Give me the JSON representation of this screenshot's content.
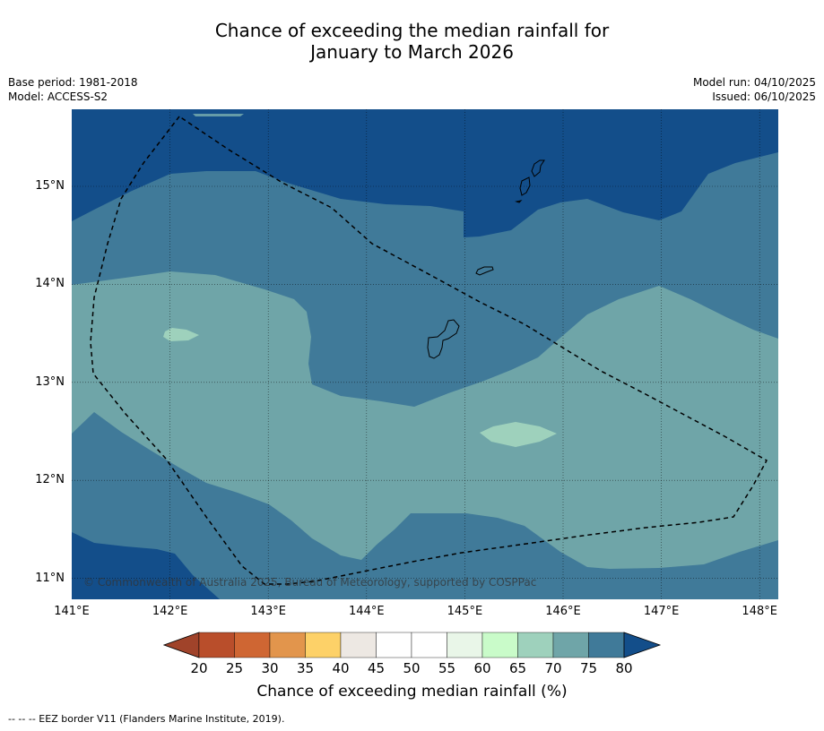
{
  "title": {
    "line1": "Chance of exceeding the median rainfall for",
    "line2": "January to March 2026"
  },
  "meta": {
    "base_period": "Base period: 1981-2018",
    "model": "Model: ACCESS-S2",
    "model_run": "Model run: 04/10/2025",
    "issued": "Issued: 06/10/2025"
  },
  "map": {
    "copyright": "© Commonwealth of Australia 2025, Bureau of Meteorology, supported by COSPPac",
    "lat_labels": [
      "15°N",
      "14°N",
      "13°N",
      "12°N",
      "11°N"
    ],
    "lon_labels": [
      "141°E",
      "142°E",
      "143°E",
      "144°E",
      "145°E",
      "146°E",
      "147°E",
      "148°E"
    ],
    "colors": {
      "p80": "#134e8a",
      "p75": "#407a99",
      "p70": "#6fa5a8",
      "p65": "#9ed1bc"
    }
  },
  "legend": {
    "ticks": [
      "20",
      "25",
      "30",
      "35",
      "40",
      "45",
      "50",
      "55",
      "60",
      "65",
      "70",
      "75",
      "80"
    ],
    "colors": [
      "#a0432a",
      "#b94e2b",
      "#cf6633",
      "#e2954c",
      "#fdd168",
      "#ede8e3",
      "#ffffff",
      "#ffffff",
      "#e9f6e8",
      "#c9fbc9",
      "#9ed1bc",
      "#6fa5a8",
      "#407a99",
      "#134e8a"
    ],
    "label": "Chance of exceeding median rainfall (%)"
  },
  "footnote": "--  --  -- EEZ border V11 (Flanders Marine Institute, 2019)."
}
